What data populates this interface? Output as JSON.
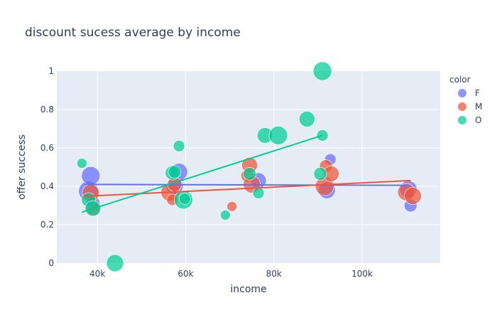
{
  "chart_data": {
    "type": "scatter",
    "title": "discount sucess average by income",
    "xlabel": "income",
    "ylabel": "offer success",
    "xlim": [
      30800,
      117700
    ],
    "ylim": [
      0,
      1
    ],
    "x_ticks": [
      40000,
      60000,
      80000,
      100000
    ],
    "x_tick_labels": [
      "40k",
      "60k",
      "80k",
      "100k"
    ],
    "y_ticks": [
      0,
      0.2,
      0.4,
      0.6,
      0.8,
      1
    ],
    "y_tick_labels": [
      "0",
      "0.2",
      "0.4",
      "0.6",
      "0.8",
      "1"
    ],
    "grid": true,
    "legend_title": "color",
    "legend_position": "right",
    "series": [
      {
        "name": "F",
        "color": "#636efa",
        "points": [
          {
            "x": 38000,
            "y": 0.375,
            "size": 14
          },
          {
            "x": 38500,
            "y": 0.455,
            "size": 13
          },
          {
            "x": 39000,
            "y": 0.31,
            "size": 10
          },
          {
            "x": 57500,
            "y": 0.4,
            "size": 12
          },
          {
            "x": 58500,
            "y": 0.475,
            "size": 12
          },
          {
            "x": 76500,
            "y": 0.43,
            "size": 11
          },
          {
            "x": 92000,
            "y": 0.38,
            "size": 12
          },
          {
            "x": 92800,
            "y": 0.54,
            "size": 8
          },
          {
            "x": 110500,
            "y": 0.385,
            "size": 12
          },
          {
            "x": 111000,
            "y": 0.3,
            "size": 9
          }
        ],
        "trend": [
          [
            37000,
            0.41
          ],
          [
            110500,
            0.405
          ]
        ]
      },
      {
        "name": "M",
        "color": "#ef553b",
        "points": [
          {
            "x": 38500,
            "y": 0.365,
            "size": 12
          },
          {
            "x": 39000,
            "y": 0.285,
            "size": 10
          },
          {
            "x": 56500,
            "y": 0.37,
            "size": 13
          },
          {
            "x": 57000,
            "y": 0.33,
            "size": 8
          },
          {
            "x": 57500,
            "y": 0.41,
            "size": 10
          },
          {
            "x": 70500,
            "y": 0.295,
            "size": 7
          },
          {
            "x": 74000,
            "y": 0.455,
            "size": 9
          },
          {
            "x": 74500,
            "y": 0.51,
            "size": 11
          },
          {
            "x": 75000,
            "y": 0.41,
            "size": 12
          },
          {
            "x": 91500,
            "y": 0.4,
            "size": 13
          },
          {
            "x": 91800,
            "y": 0.505,
            "size": 9
          },
          {
            "x": 93000,
            "y": 0.465,
            "size": 11
          },
          {
            "x": 110000,
            "y": 0.37,
            "size": 12
          },
          {
            "x": 111500,
            "y": 0.35,
            "size": 12
          }
        ],
        "trend": [
          [
            37000,
            0.348
          ],
          [
            111000,
            0.43
          ]
        ]
      },
      {
        "name": "O",
        "color": "#00cc96",
        "points": [
          {
            "x": 36500,
            "y": 0.52,
            "size": 7
          },
          {
            "x": 38000,
            "y": 0.33,
            "size": 10
          },
          {
            "x": 39000,
            "y": 0.285,
            "size": 11
          },
          {
            "x": 44000,
            "y": 0.0,
            "size": 12
          },
          {
            "x": 57000,
            "y": 0.47,
            "size": 10
          },
          {
            "x": 57500,
            "y": 0.475,
            "size": 9
          },
          {
            "x": 58500,
            "y": 0.61,
            "size": 8
          },
          {
            "x": 59500,
            "y": 0.33,
            "size": 13
          },
          {
            "x": 59800,
            "y": 0.335,
            "size": 8
          },
          {
            "x": 69000,
            "y": 0.25,
            "size": 7
          },
          {
            "x": 74500,
            "y": 0.465,
            "size": 9
          },
          {
            "x": 76500,
            "y": 0.365,
            "size": 8
          },
          {
            "x": 78000,
            "y": 0.665,
            "size": 11
          },
          {
            "x": 81000,
            "y": 0.665,
            "size": 13
          },
          {
            "x": 87500,
            "y": 0.75,
            "size": 11
          },
          {
            "x": 90500,
            "y": 0.465,
            "size": 9
          },
          {
            "x": 91000,
            "y": 0.665,
            "size": 8
          },
          {
            "x": 91000,
            "y": 1.0,
            "size": 13
          }
        ],
        "trend": [
          [
            36500,
            0.265
          ],
          [
            91000,
            0.665
          ]
        ]
      }
    ]
  }
}
